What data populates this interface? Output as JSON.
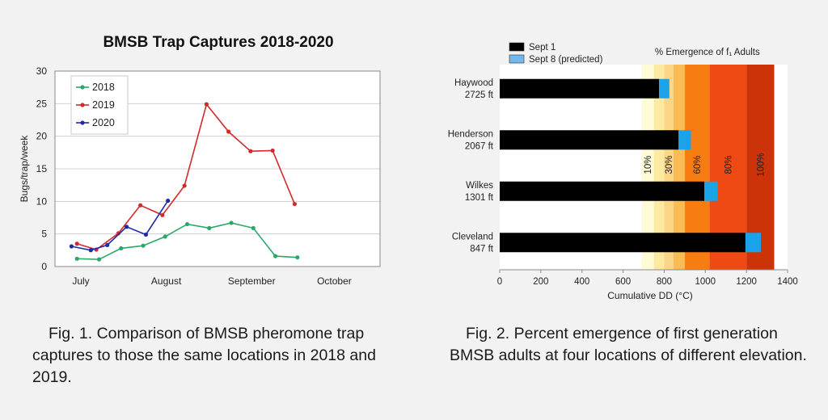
{
  "captions": {
    "fig1_line1": "Fig. 1. Comparison of BMSB pheromone trap",
    "fig1_rest": "captures to those the same locations in 2018 and 2019.",
    "fig2_line1": "Fig. 2. Percent emergence of first generation",
    "fig2_rest": "BMSB adults at four locations of different elevation."
  },
  "chart_data": [
    {
      "type": "line",
      "title": "BMSB Trap Captures 2018-2020",
      "ylabel": "Bugs/trap/week",
      "xlabel": "",
      "ylim": [
        0,
        30
      ],
      "yticks": [
        0,
        5,
        10,
        15,
        20,
        25,
        30
      ],
      "x_units": "days from July 1",
      "xlim": [
        0,
        118
      ],
      "xtick_labels": [
        {
          "label": "July",
          "x": 0
        },
        {
          "label": "August",
          "x": 31
        },
        {
          "label": "September",
          "x": 62
        },
        {
          "label": "October",
          "x": 92
        }
      ],
      "grid": true,
      "legend": "top-left",
      "series": [
        {
          "name": "2018",
          "color": "#2aa866",
          "x": [
            8,
            16,
            24,
            32,
            40,
            48,
            56,
            64,
            72,
            80,
            88
          ],
          "y": [
            1.2,
            1.1,
            2.8,
            3.2,
            4.6,
            6.5,
            5.9,
            6.7,
            5.9,
            1.6,
            1.4
          ]
        },
        {
          "name": "2019",
          "color": "#d12b2b",
          "x": [
            8,
            15,
            23,
            31,
            39,
            47,
            55,
            63,
            71,
            79,
            87
          ],
          "y": [
            3.5,
            2.6,
            5.1,
            9.4,
            7.9,
            12.4,
            24.9,
            20.7,
            17.7,
            17.8,
            9.6
          ]
        },
        {
          "name": "2020",
          "color": "#1f2aa8",
          "x": [
            6,
            13,
            19,
            26,
            33,
            41
          ],
          "y": [
            3.1,
            2.5,
            3.3,
            6.1,
            4.9,
            10.1
          ]
        }
      ]
    },
    {
      "type": "bar",
      "orientation": "horizontal",
      "stacked": true,
      "title": "% Emergence of f₁ Adults",
      "xlabel": "Cumulative DD (°C)",
      "ylabel": "",
      "xlim": [
        0,
        1400
      ],
      "xticks": [
        0,
        200,
        400,
        600,
        800,
        1000,
        1200,
        1400
      ],
      "legend": "top-left",
      "categories": [
        {
          "name": "Haywood",
          "elev": "2725 ft"
        },
        {
          "name": "Henderson",
          "elev": "2067 ft"
        },
        {
          "name": "Wilkes",
          "elev": "1301 ft"
        },
        {
          "name": "Cleveland",
          "elev": "847 ft"
        }
      ],
      "series": [
        {
          "name": "Sept 1",
          "color": "#000000",
          "values": [
            775,
            870,
            995,
            1195
          ]
        },
        {
          "name": "Sept 8 (predicted)",
          "color": "#1aa3e8",
          "values": [
            50,
            60,
            65,
            75
          ]
        }
      ],
      "emergence_bands": [
        {
          "from": 690,
          "to": 750,
          "color": "#fffbd6"
        },
        {
          "from": 750,
          "to": 800,
          "color": "#fde9a0"
        },
        {
          "from": 800,
          "to": 845,
          "color": "#fcd587"
        },
        {
          "from": 845,
          "to": 900,
          "color": "#fbbb55"
        },
        {
          "from": 900,
          "to": 1020,
          "color": "#f77d12"
        },
        {
          "from": 1020,
          "to": 1200,
          "color": "#f04a14"
        },
        {
          "from": 1200,
          "to": 1335,
          "color": "#cc3308"
        }
      ],
      "band_labels": [
        {
          "label": "10%",
          "x": 720
        },
        {
          "label": "30%",
          "x": 822
        },
        {
          "label": "60%",
          "x": 960
        },
        {
          "label": "80%",
          "x": 1110
        },
        {
          "label": "100%",
          "x": 1268
        }
      ]
    }
  ]
}
